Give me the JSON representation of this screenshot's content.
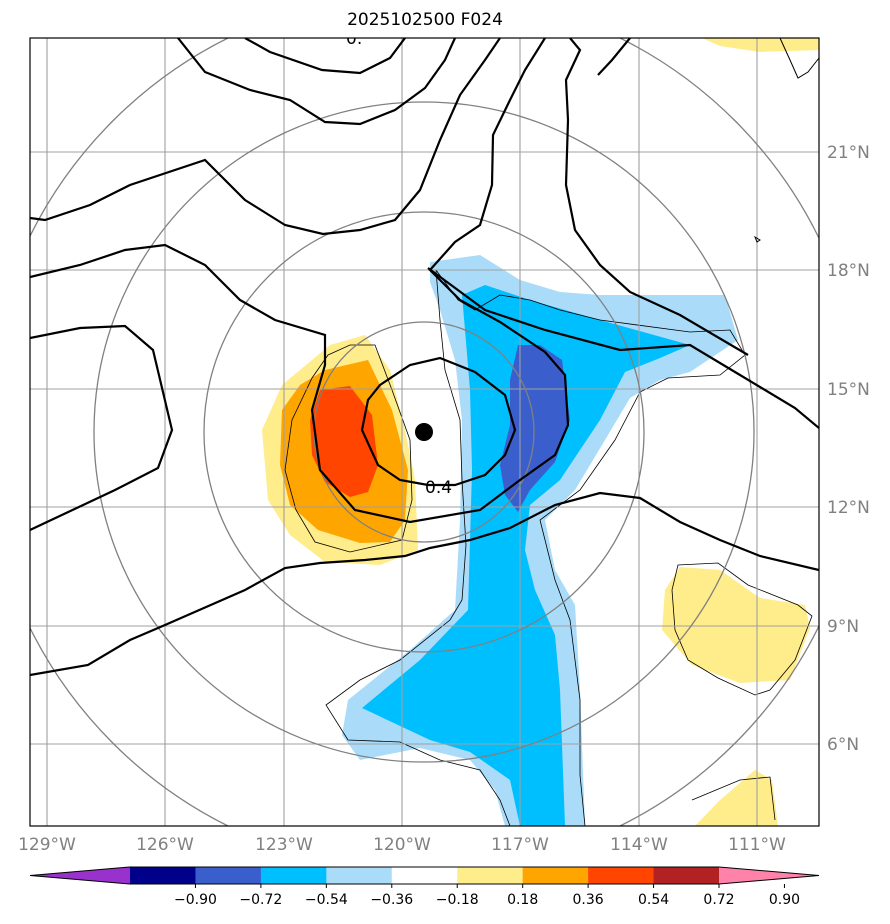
{
  "title": "2025102500 F024",
  "longitude_labels": [
    "129°W",
    "126°W",
    "123°W",
    "120°W",
    "117°W",
    "114°W",
    "111°W"
  ],
  "latitude_labels": [
    "21°N",
    "18°N",
    "15°N",
    "12°N",
    "9°N",
    "6°N"
  ],
  "contour_labels": [
    "0.4",
    "0."
  ],
  "colorbar": {
    "ticks": [
      "−0.90",
      "−0.72",
      "−0.54",
      "−0.36",
      "−0.18",
      "0.18",
      "0.36",
      "0.54",
      "0.72",
      "0.90"
    ],
    "colors": [
      "#9932cc",
      "#00008b",
      "#3a5fcd",
      "#00bfff",
      "#aadcfa",
      "#ffffff",
      "#ffec8b",
      "#ffa500",
      "#ff4500",
      "#b22222",
      "#ff82ab"
    ]
  },
  "colors": {
    "axis": "#000000",
    "grid": "#a0a0a0",
    "range_rings": "#808080",
    "tick_text": "#808080",
    "storm_center": "#000000"
  }
}
